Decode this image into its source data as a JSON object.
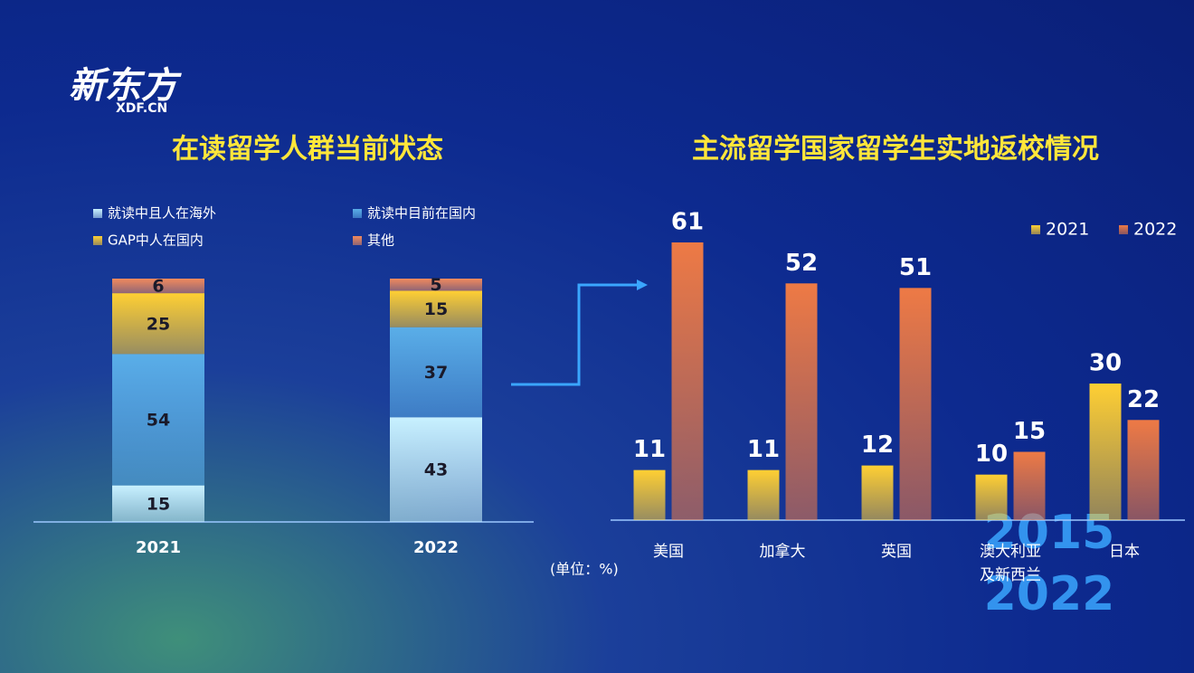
{
  "logo": {
    "brand": "新东方",
    "domain": "XDF.CN"
  },
  "badge": [
    "2015",
    "2022"
  ],
  "chart_data": [
    {
      "type": "bar",
      "stacked": true,
      "title": "在读留学人群当前状态",
      "categories": [
        "2021",
        "2022"
      ],
      "series": [
        {
          "name": "就读中且人在海外",
          "color": "#c8f1ff",
          "values": [
            15,
            43
          ]
        },
        {
          "name": "就读中目前在国内",
          "color": "#5aaee8",
          "values": [
            54,
            37
          ]
        },
        {
          "name": "GAP中人在国内",
          "color": "#ffcf33",
          "values": [
            25,
            15
          ]
        },
        {
          "name": "其他",
          "color": "#f28a5c",
          "values": [
            6,
            5
          ]
        }
      ],
      "legend": "top"
    },
    {
      "type": "bar",
      "stacked": false,
      "title": "主流留学国家留学生实地返校情况",
      "subtitle": "(单位：%)",
      "categories": [
        "美国",
        "加拿大",
        "英国",
        "澳大利亚及新西兰",
        "日本"
      ],
      "series": [
        {
          "name": "2021",
          "color": "#ffcf33",
          "values": [
            11,
            11,
            12,
            10,
            30
          ]
        },
        {
          "name": "2022",
          "color": "#ee7a45",
          "values": [
            61,
            52,
            51,
            15,
            22
          ]
        }
      ],
      "legend": "upper right"
    }
  ]
}
